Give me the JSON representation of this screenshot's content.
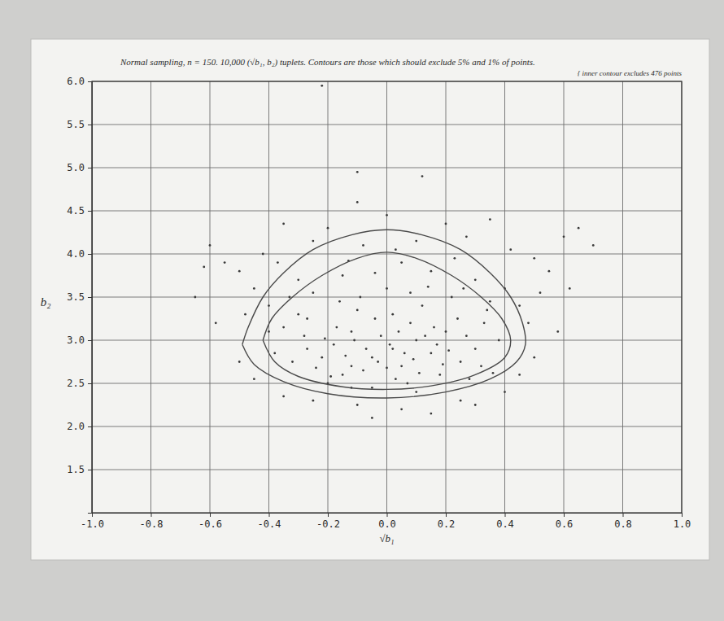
{
  "chart_data": {
    "type": "scatter",
    "title": "Normal sampling, n = 150. 10,000 (√b₁, b₂) tuplets. Contours are those which should exclude 5% and 1% of points.",
    "annotation": "{ inner contour excludes 476 points",
    "x_label": "√b₁",
    "y_label": "b₂",
    "xlim": [
      -1.0,
      1.0
    ],
    "ylim": [
      1.0,
      6.0
    ],
    "xticks": [
      {
        "value": -1.0,
        "label": "-1.0"
      },
      -0.8,
      -0.6,
      -0.4,
      -0.2,
      {
        "value": 0.0,
        "label": "0.0"
      },
      0.2,
      0.4,
      0.6,
      0.8,
      {
        "value": 1.0,
        "label": "1.0"
      }
    ],
    "yticks": [
      1.5,
      {
        "value": 2.0,
        "label": "2.0"
      },
      2.5,
      {
        "value": 3.0,
        "label": "3.0"
      },
      3.5,
      {
        "value": 4.0,
        "label": "4.0"
      },
      4.5,
      {
        "value": 5.0,
        "label": "5.0"
      },
      5.5,
      {
        "value": 6.0,
        "label": "6.0"
      }
    ],
    "grid": true,
    "series": [
      {
        "type": "scatter",
        "color": "#3a3a3a",
        "marker": "dot",
        "x": [
          0.02,
          -0.05,
          0.1,
          -0.12,
          0.05,
          -0.02,
          0.15,
          -0.18,
          0.08,
          -0.08,
          0.2,
          -0.22,
          0.25,
          -0.28,
          0.03,
          -0.1,
          0.12,
          -0.15,
          0.18,
          -0.3,
          0.3,
          -0.35,
          0.33,
          -0.25,
          0.22,
          0.0,
          -0.05,
          0.07,
          -0.2,
          0.28,
          -0.4,
          0.38,
          -0.38,
          0.35,
          -0.15,
          0.15,
          0.05,
          -0.08,
          0.1,
          -0.3,
          0.3,
          -0.45,
          0.45,
          -0.5,
          0.52,
          -0.55,
          0.55,
          -0.42,
          0.42,
          -0.2,
          0.2,
          0.0,
          -0.1,
          0.35,
          -0.35,
          0.6,
          -0.6,
          0.12,
          -0.1,
          -0.22,
          0.58,
          -0.58,
          0.5,
          -0.5,
          0.45,
          -0.45,
          0.4,
          -0.35,
          0.25,
          -0.1,
          0.05,
          0.15,
          -0.05,
          0.3,
          -0.25,
          0.62,
          -0.65,
          0.7,
          -0.62,
          0.65,
          0.01,
          -0.03,
          0.06,
          -0.07,
          0.09,
          -0.11,
          0.13,
          -0.14,
          0.17,
          -0.17,
          0.04,
          -0.04,
          0.11,
          -0.12,
          0.21,
          -0.21,
          0.24,
          -0.24,
          0.27,
          -0.27,
          0.0,
          0.02,
          -0.09,
          0.08,
          -0.16,
          0.16,
          0.19,
          -0.19,
          0.32,
          -0.32,
          0.34,
          -0.33,
          0.26,
          -0.27,
          0.1,
          -0.12,
          0.36,
          -0.4,
          0.4,
          -0.37,
          0.14,
          -0.04,
          0.03,
          -0.13,
          0.23,
          -0.25,
          0.27,
          0.48,
          -0.48,
          0.5
        ],
        "values": [
          2.9,
          2.8,
          3.0,
          3.1,
          2.7,
          3.05,
          2.85,
          2.95,
          3.2,
          2.65,
          3.1,
          2.8,
          2.75,
          3.05,
          2.55,
          3.35,
          3.4,
          2.6,
          2.6,
          3.3,
          2.9,
          3.15,
          3.2,
          3.55,
          3.5,
          3.6,
          2.45,
          2.5,
          2.5,
          2.55,
          3.4,
          3.0,
          2.85,
          3.45,
          3.75,
          3.8,
          3.9,
          4.1,
          4.15,
          3.7,
          3.7,
          3.6,
          3.4,
          3.8,
          3.55,
          3.9,
          3.8,
          4.0,
          4.05,
          4.3,
          4.35,
          4.45,
          4.6,
          4.4,
          4.35,
          4.2,
          4.1,
          4.9,
          4.95,
          5.95,
          3.1,
          3.2,
          2.8,
          2.75,
          2.6,
          2.55,
          2.4,
          2.35,
          2.3,
          2.25,
          2.2,
          2.15,
          2.1,
          2.25,
          2.3,
          3.6,
          3.5,
          4.1,
          3.85,
          4.3,
          2.95,
          2.75,
          2.85,
          2.9,
          2.78,
          3.0,
          3.05,
          2.82,
          2.95,
          3.15,
          3.1,
          3.25,
          2.62,
          2.7,
          2.88,
          3.02,
          3.25,
          2.68,
          3.05,
          2.9,
          2.68,
          3.3,
          3.5,
          3.55,
          3.45,
          3.15,
          2.72,
          2.58,
          2.7,
          2.75,
          3.35,
          3.5,
          3.6,
          3.25,
          2.4,
          2.45,
          2.62,
          3.1,
          3.6,
          3.9,
          3.62,
          3.78,
          4.05,
          3.92,
          3.95,
          4.15,
          4.2,
          3.2,
          3.3,
          3.95
        ]
      },
      {
        "type": "line",
        "color": "#4a4a4a",
        "line_style": "solid",
        "x": [
          -0.49,
          -0.47,
          -0.42,
          -0.35,
          -0.25,
          -0.12,
          0.0,
          0.12,
          0.25,
          0.35,
          0.42,
          0.46,
          0.47,
          0.44,
          0.35,
          0.2,
          0.0,
          -0.2,
          -0.35,
          -0.45,
          -0.49
        ],
        "values": [
          2.95,
          3.15,
          3.5,
          3.78,
          4.05,
          4.22,
          4.28,
          4.22,
          4.05,
          3.78,
          3.5,
          3.2,
          2.95,
          2.75,
          2.55,
          2.4,
          2.33,
          2.38,
          2.52,
          2.72,
          2.95
        ]
      },
      {
        "type": "line",
        "color": "#4a4a4a",
        "line_style": "solid",
        "x": [
          -0.42,
          -0.39,
          -0.32,
          -0.22,
          -0.1,
          0.0,
          0.1,
          0.22,
          0.32,
          0.39,
          0.42,
          0.4,
          0.3,
          0.15,
          0.0,
          -0.15,
          -0.3,
          -0.38,
          -0.42
        ],
        "values": [
          3.0,
          3.25,
          3.5,
          3.75,
          3.95,
          4.02,
          3.95,
          3.75,
          3.5,
          3.25,
          3.0,
          2.8,
          2.6,
          2.47,
          2.43,
          2.46,
          2.58,
          2.75,
          3.0
        ]
      }
    ]
  }
}
